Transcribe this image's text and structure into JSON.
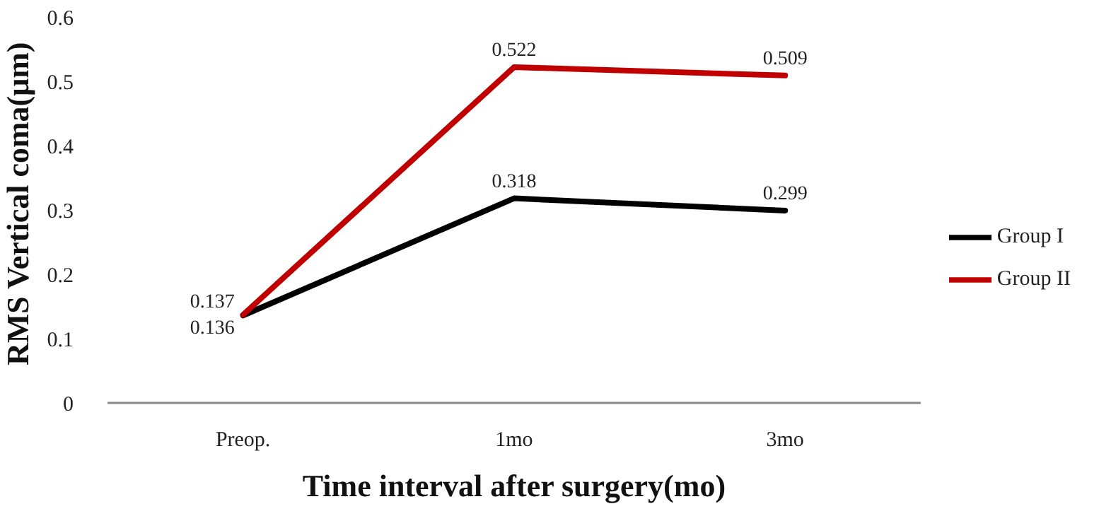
{
  "chart_data": {
    "type": "line",
    "xlabel": "Time interval after surgery(mo)",
    "ylabel": "RMS Vertical coma(μm)",
    "categories": [
      "Preop.",
      "1mo",
      "3mo"
    ],
    "series": [
      {
        "name": "Group I",
        "color": "#000000",
        "values": [
          0.136,
          0.318,
          0.299
        ]
      },
      {
        "name": "Group II",
        "color": "#c00000",
        "values": [
          0.137,
          0.522,
          0.509
        ]
      }
    ],
    "ylim": [
      0,
      0.6
    ],
    "yticks": [
      0,
      0.1,
      0.2,
      0.3,
      0.4,
      0.5,
      0.6
    ],
    "grid": false,
    "legend": "right",
    "marker": "none",
    "line_style": "solid",
    "data_labels": true
  }
}
